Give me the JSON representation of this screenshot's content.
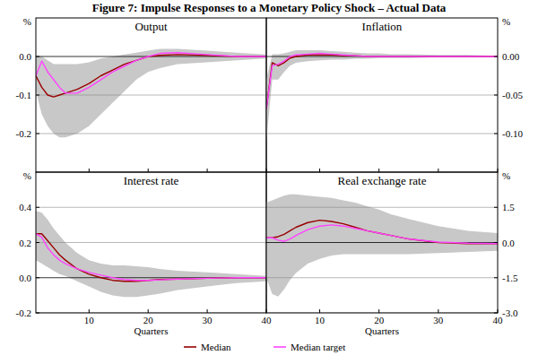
{
  "chart_data": {
    "type": "line",
    "title": "Figure 7: Impulse Responses to a Monetary Policy Shock – Actual Data",
    "x": [
      1,
      2,
      3,
      4,
      5,
      6,
      8,
      10,
      12,
      14,
      16,
      18,
      20,
      22,
      25,
      30,
      35,
      40
    ],
    "xlim": [
      1,
      40
    ],
    "xticks": [
      10,
      20,
      30,
      40
    ],
    "xlabel": "Quarters",
    "grid": true,
    "legend": "bottom",
    "series": [
      {
        "name": "Median",
        "color": "#990000"
      },
      {
        "name": "Median target",
        "color": "#ff44ff"
      }
    ],
    "panels": [
      {
        "title": "Output",
        "unit": "%",
        "ylim": [
          -0.3,
          0.1
        ],
        "yticks": [
          -0.2,
          -0.1,
          {
            "value": 0,
            "label": "0.0"
          }
        ],
        "band": {
          "color": "#c8c8c8",
          "upper": [
            0,
            0,
            -0.01,
            -0.02,
            -0.02,
            -0.02,
            -0.02,
            -0.015,
            -0.005,
            0,
            0.005,
            0.01,
            0.015,
            0.02,
            0.02,
            0.015,
            0.01,
            0.005
          ],
          "lower": [
            -0.09,
            -0.15,
            -0.18,
            -0.2,
            -0.21,
            -0.21,
            -0.2,
            -0.18,
            -0.15,
            -0.12,
            -0.09,
            -0.06,
            -0.04,
            -0.03,
            -0.02,
            -0.015,
            -0.01,
            -0.005
          ]
        },
        "lines": [
          [
            -0.05,
            -0.08,
            -0.1,
            -0.105,
            -0.1,
            -0.095,
            -0.085,
            -0.07,
            -0.05,
            -0.035,
            -0.02,
            -0.01,
            0,
            0.003,
            0.005,
            0.003,
            0,
            0
          ],
          [
            -0.05,
            -0.012,
            -0.04,
            -0.06,
            -0.08,
            -0.095,
            -0.095,
            -0.08,
            -0.06,
            -0.04,
            -0.025,
            -0.01,
            0,
            0.008,
            0.01,
            0.005,
            0,
            0
          ]
        ]
      },
      {
        "title": "Inflation",
        "unit": "%",
        "ylim": [
          -0.15,
          0.05
        ],
        "yticks": [
          {
            "value": -0.1,
            "label": "-0.10"
          },
          -0.05,
          {
            "value": 0,
            "label": "0.00"
          }
        ],
        "band": {
          "color": "#c8c8c8",
          "upper": [
            -0.03,
            0.003,
            0.003,
            0.004,
            0.006,
            0.008,
            0.008,
            0.008,
            0.007,
            0.006,
            0.005,
            0.004,
            0.004,
            0.003,
            0.003,
            0.002,
            0.002,
            0.001
          ],
          "lower": [
            -0.11,
            -0.03,
            -0.03,
            -0.02,
            -0.012,
            -0.008,
            -0.006,
            -0.005,
            -0.004,
            -0.004,
            -0.003,
            -0.003,
            -0.002,
            -0.002,
            -0.002,
            -0.001,
            -0.001,
            -0.001
          ]
        },
        "lines": [
          [
            -0.068,
            -0.008,
            -0.012,
            -0.008,
            -0.002,
            0,
            0.002,
            0.002,
            0.002,
            0.001,
            0.001,
            0,
            0,
            0,
            0,
            0,
            0,
            0
          ],
          [
            -0.068,
            -0.012,
            -0.01,
            -0.006,
            0,
            0.002,
            0.003,
            0.004,
            0.003,
            0.002,
            0.001,
            0,
            0,
            0,
            0,
            0,
            0,
            0
          ]
        ]
      },
      {
        "title": "Interest rate",
        "unit": "%",
        "ylim": [
          -0.2,
          0.6
        ],
        "yticks": [
          -0.2,
          {
            "value": 0,
            "label": "0.0"
          },
          0.2,
          0.4
        ],
        "band": {
          "color": "#c8c8c8",
          "upper": [
            0.38,
            0.37,
            0.33,
            0.28,
            0.24,
            0.2,
            0.14,
            0.1,
            0.08,
            0.07,
            0.07,
            0.065,
            0.06,
            0.05,
            0.04,
            0.03,
            0.02,
            0.01
          ],
          "lower": [
            0.1,
            0.08,
            0.06,
            0.04,
            0.02,
            0.01,
            -0.02,
            -0.05,
            -0.08,
            -0.1,
            -0.11,
            -0.11,
            -0.1,
            -0.09,
            -0.07,
            -0.05,
            -0.03,
            -0.02
          ]
        },
        "lines": [
          [
            0.25,
            0.25,
            0.21,
            0.17,
            0.13,
            0.1,
            0.05,
            0.02,
            0,
            -0.015,
            -0.02,
            -0.02,
            -0.015,
            -0.01,
            -0.008,
            -0.003,
            0,
            0
          ],
          [
            0.25,
            0.23,
            0.17,
            0.13,
            0.1,
            0.08,
            0.05,
            0.03,
            0.015,
            0,
            -0.01,
            -0.015,
            -0.015,
            -0.012,
            -0.008,
            -0.003,
            0,
            0
          ]
        ]
      },
      {
        "title": "Real exchange rate",
        "unit": "%",
        "ylim": [
          -3.0,
          3.0
        ],
        "yticks": [
          {
            "value": -3,
            "label": "-3.0"
          },
          -1.5,
          {
            "value": 0,
            "label": "0.0"
          },
          1.5
        ],
        "band": {
          "color": "#c8c8c8",
          "upper": [
            1.7,
            1.8,
            1.9,
            2.0,
            2.05,
            2.05,
            2.0,
            1.95,
            1.9,
            1.8,
            1.7,
            1.55,
            1.4,
            1.2,
            1.0,
            0.7,
            0.5,
            0.4
          ],
          "lower": [
            -1.5,
            -2.2,
            -2.3,
            -2.0,
            -1.6,
            -1.3,
            -0.9,
            -0.7,
            -0.55,
            -0.5,
            -0.5,
            -0.5,
            -0.5,
            -0.5,
            -0.5,
            -0.45,
            -0.4,
            -0.35
          ]
        },
        "lines": [
          [
            0.2,
            0.2,
            0.25,
            0.35,
            0.5,
            0.65,
            0.85,
            0.95,
            0.9,
            0.8,
            0.65,
            0.5,
            0.4,
            0.3,
            0.15,
            0,
            -0.05,
            -0.05
          ],
          [
            0.2,
            0.2,
            0.1,
            0.05,
            0.15,
            0.3,
            0.55,
            0.7,
            0.75,
            0.7,
            0.6,
            0.5,
            0.4,
            0.3,
            0.15,
            0.02,
            -0.03,
            -0.05
          ]
        ]
      }
    ]
  }
}
